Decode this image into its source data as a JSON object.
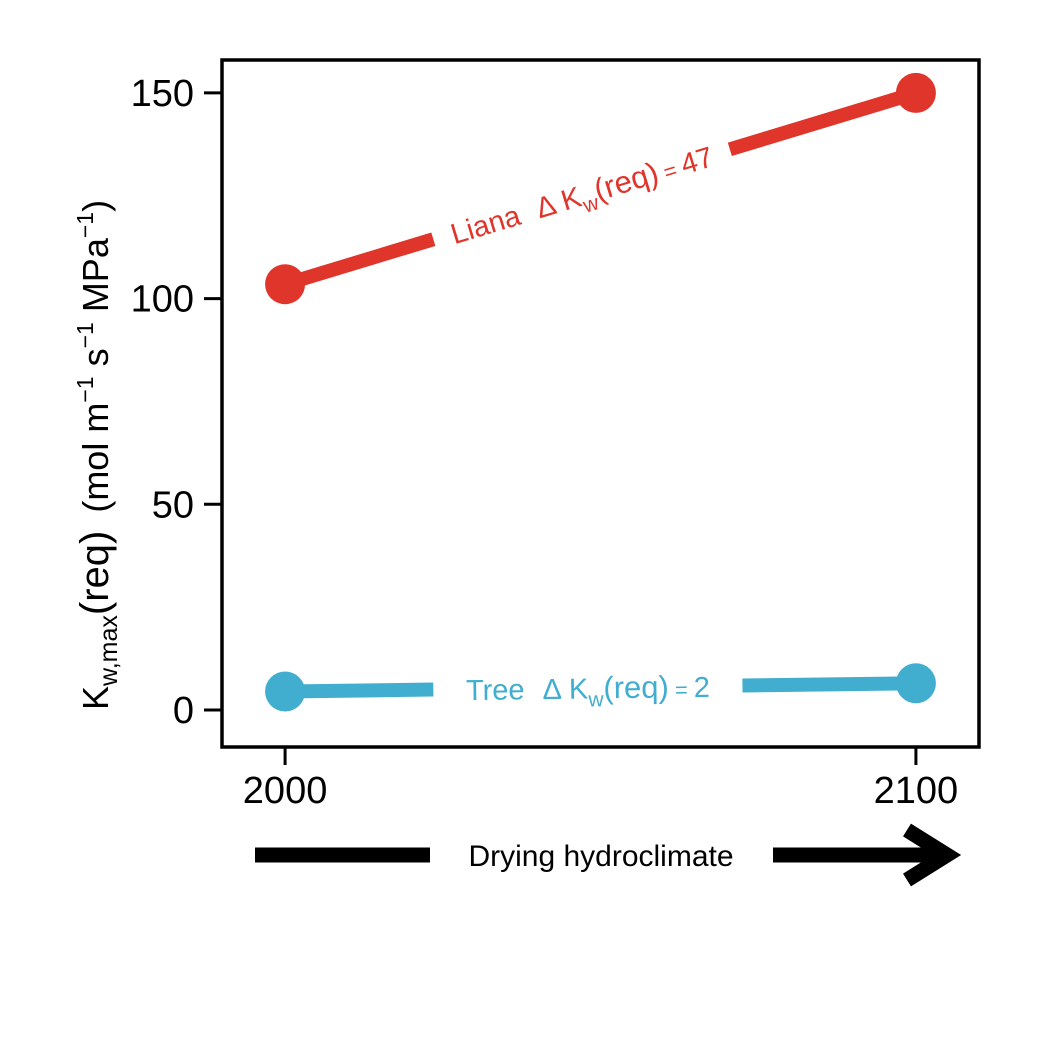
{
  "chart_data": {
    "type": "line",
    "x": [
      2000,
      2100
    ],
    "xticks": [
      "2000",
      "2100"
    ],
    "xlim": [
      1990,
      2110
    ],
    "yticks": [
      "0",
      "50",
      "100",
      "150"
    ],
    "ylim": [
      -9,
      158
    ],
    "ylabel": {
      "main": "K",
      "sub": "w,max",
      "req": "(req)",
      "units_a": "(mol m",
      "sup1": "−1",
      "units_b": " s",
      "sup2": "−1",
      "units_c": " MPa",
      "sup3": "−1",
      "units_d": ")"
    },
    "series": [
      {
        "name": "Liana",
        "values": [
          103.5,
          150
        ],
        "color": "#e0352b",
        "label": {
          "name": "Liana",
          "delta": "Δ",
          "k": "K",
          "sub": "w",
          "expr": "(req)",
          "eq": "=",
          "value": "47"
        }
      },
      {
        "name": "Tree",
        "values": [
          4.5,
          6.5
        ],
        "color": "#42aecf",
        "label": {
          "name": "Tree",
          "delta": "Δ",
          "k": "K",
          "sub": "w",
          "expr": "(req)",
          "eq": "=",
          "value": "2"
        }
      }
    ],
    "grid": false,
    "legend": "none"
  },
  "arrow": {
    "label": "Drying hydroclimate"
  }
}
